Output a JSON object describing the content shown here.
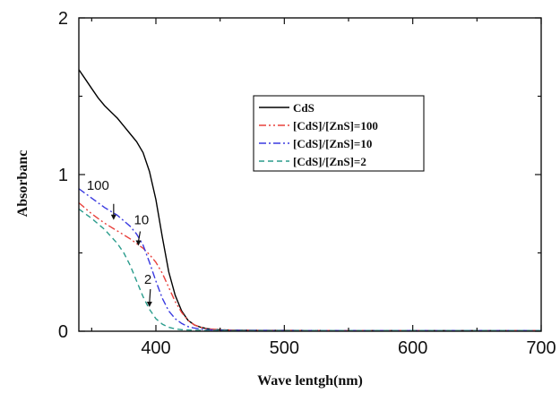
{
  "chart_data": {
    "type": "line",
    "title": "",
    "xlabel": "Wave lentgh(nm)",
    "ylabel": "Absorbanc",
    "xlim": [
      340,
      700
    ],
    "ylim": [
      0,
      2
    ],
    "x_ticks": [
      400,
      500,
      600,
      700
    ],
    "x_tick_labels": [
      "400",
      "500",
      "600",
      "700"
    ],
    "y_ticks": [
      0,
      1,
      2
    ],
    "y_tick_labels": [
      "0",
      "1",
      "2"
    ],
    "grid": false,
    "legend_position": "upper-right",
    "series": [
      {
        "name": "CdS",
        "color": "#000000",
        "style": "solid",
        "x": [
          340,
          345,
          350,
          355,
          360,
          365,
          370,
          375,
          380,
          385,
          390,
          395,
          400,
          405,
          410,
          415,
          420,
          425,
          430,
          435,
          440,
          445,
          450,
          460,
          470,
          480,
          500,
          550,
          600,
          650,
          700
        ],
        "y": [
          1.67,
          1.61,
          1.55,
          1.49,
          1.44,
          1.4,
          1.36,
          1.31,
          1.26,
          1.21,
          1.14,
          1.02,
          0.84,
          0.6,
          0.38,
          0.23,
          0.13,
          0.07,
          0.04,
          0.025,
          0.016,
          0.012,
          0.009,
          0.007,
          0.006,
          0.005,
          0.005,
          0.004,
          0.004,
          0.004,
          0.004
        ]
      },
      {
        "name": "[CdS]/[ZnS]=100",
        "color": "#e8413c",
        "style": "dash-dot-dot",
        "x": [
          340,
          350,
          360,
          370,
          380,
          390,
          395,
          400,
          405,
          410,
          415,
          420,
          425,
          430,
          435,
          440,
          450,
          460,
          480,
          500,
          550,
          600,
          650,
          700
        ],
        "y": [
          0.82,
          0.75,
          0.69,
          0.64,
          0.59,
          0.53,
          0.49,
          0.44,
          0.37,
          0.28,
          0.19,
          0.12,
          0.07,
          0.04,
          0.025,
          0.015,
          0.01,
          0.007,
          0.005,
          0.005,
          0.004,
          0.004,
          0.004,
          0.004
        ]
      },
      {
        "name": "[CdS]/[ZnS]=10",
        "color": "#3a3ae0",
        "style": "dash-dot",
        "x": [
          340,
          350,
          360,
          370,
          380,
          385,
          390,
          395,
          400,
          405,
          410,
          415,
          420,
          425,
          430,
          435,
          440,
          450,
          460,
          480,
          500,
          550,
          600,
          650,
          700
        ],
        "y": [
          0.91,
          0.85,
          0.79,
          0.74,
          0.67,
          0.62,
          0.55,
          0.44,
          0.32,
          0.21,
          0.13,
          0.08,
          0.05,
          0.03,
          0.02,
          0.013,
          0.009,
          0.006,
          0.005,
          0.005,
          0.004,
          0.004,
          0.004,
          0.004,
          0.004
        ]
      },
      {
        "name": "[CdS]/[ZnS]=2",
        "color": "#2a9c8c",
        "style": "dashed",
        "x": [
          340,
          350,
          360,
          370,
          375,
          380,
          385,
          390,
          395,
          400,
          405,
          410,
          415,
          420,
          425,
          430,
          440,
          450,
          460,
          480,
          500,
          550,
          600,
          650,
          700
        ],
        "y": [
          0.78,
          0.72,
          0.65,
          0.56,
          0.5,
          0.42,
          0.32,
          0.22,
          0.14,
          0.08,
          0.045,
          0.025,
          0.015,
          0.01,
          0.008,
          0.006,
          0.005,
          0.005,
          0.004,
          0.004,
          0.004,
          0.004,
          0.004,
          0.004,
          0.004
        ]
      }
    ],
    "annotations": [
      {
        "text": "100",
        "at": [
          365,
          0.87
        ]
      },
      {
        "text": "10",
        "at": [
          385,
          0.66
        ]
      },
      {
        "text": "2",
        "at": [
          395,
          0.28
        ]
      }
    ]
  }
}
